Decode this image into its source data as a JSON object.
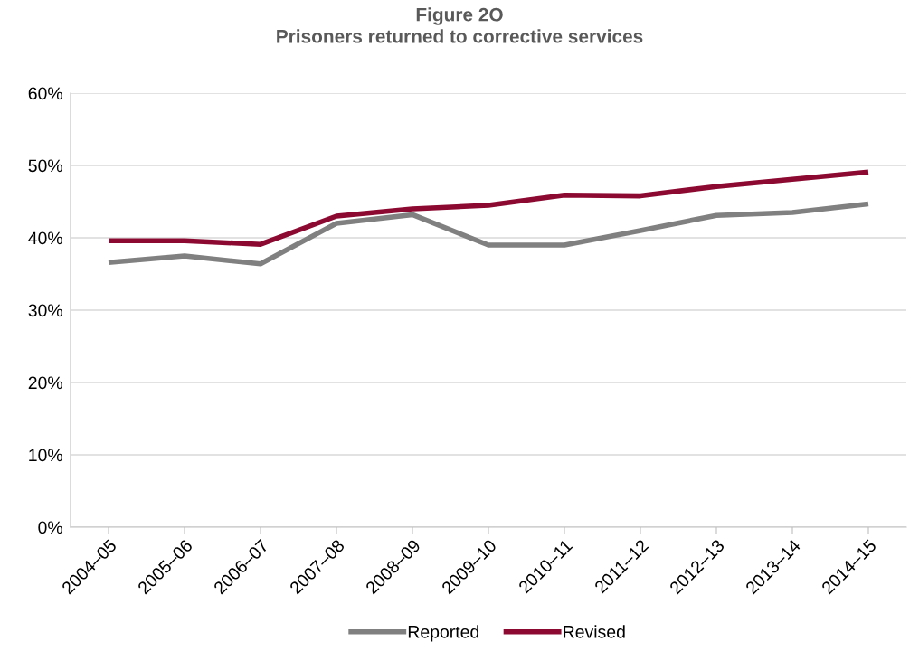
{
  "chart_data": {
    "type": "line",
    "title": "Figure 2O\nPrisoners returned to corrective services",
    "categories": [
      "2004–05",
      "2005–06",
      "2006–07",
      "2007–08",
      "2008–09",
      "2009–10",
      "2010–11",
      "2011–12",
      "2012–13",
      "2013–14",
      "2014–15"
    ],
    "series": [
      {
        "name": "Reported",
        "color": "#808080",
        "values": [
          36.6,
          37.5,
          36.4,
          42.0,
          43.2,
          39.0,
          39.0,
          41.0,
          43.1,
          43.5,
          44.7
        ]
      },
      {
        "name": "Revised",
        "color": "#8c0a32",
        "values": [
          39.6,
          39.6,
          39.1,
          43.0,
          44.0,
          44.5,
          45.9,
          45.8,
          47.1,
          48.1,
          49.1
        ]
      }
    ],
    "ylim": [
      0,
      60
    ],
    "yticks": [
      {
        "value": 0,
        "label": "0%"
      },
      {
        "value": 10,
        "label": "10%"
      },
      {
        "value": 20,
        "label": "20%"
      },
      {
        "value": 30,
        "label": "30%"
      },
      {
        "value": 40,
        "label": "40%"
      },
      {
        "value": 50,
        "label": "50%"
      },
      {
        "value": 60,
        "label": "60%"
      }
    ],
    "grid": "y",
    "legend": "bottom",
    "marker": "none",
    "line_style": "solid"
  }
}
